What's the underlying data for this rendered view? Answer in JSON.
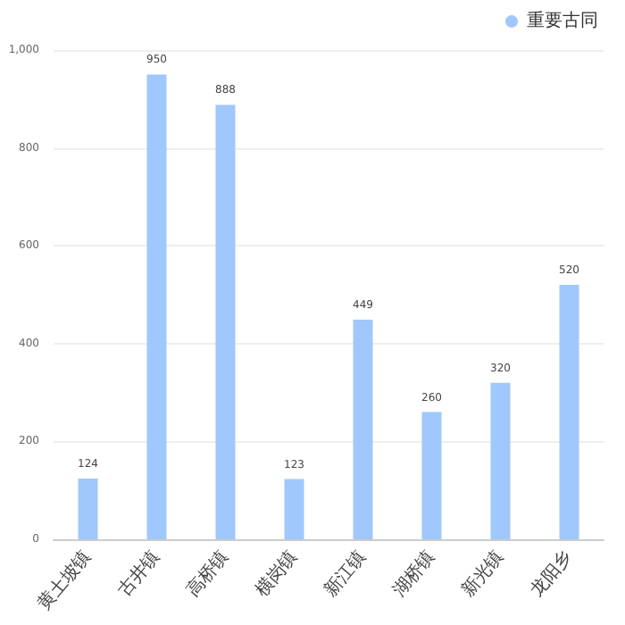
{
  "chart_data": {
    "type": "bar",
    "categories": [
      "黄土坡镇",
      "古井镇",
      "高桥镇",
      "横岗镇",
      "新江镇",
      "湖桥镇",
      "新光镇",
      "龙阳乡"
    ],
    "series": [
      {
        "name": "重要古同",
        "color": "#a0c8fd",
        "values": [
          124,
          950,
          888,
          123,
          449,
          260,
          320,
          520
        ]
      }
    ],
    "ylim": [
      0,
      1000
    ],
    "yticks": [
      0,
      200,
      400,
      600,
      800,
      {
        "value": 1000,
        "label": "1,000"
      }
    ],
    "grid": "y",
    "legend": "top right",
    "data_labels": true
  }
}
